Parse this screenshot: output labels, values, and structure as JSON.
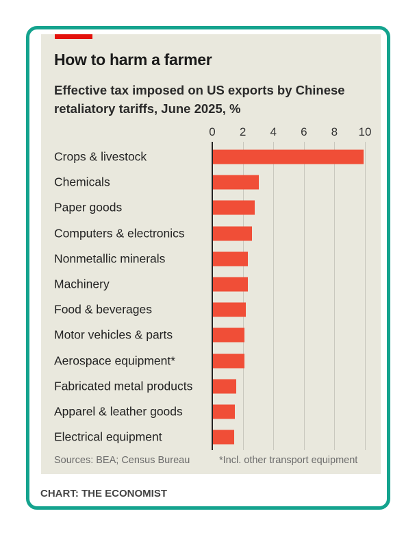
{
  "chart_data": {
    "type": "bar",
    "orientation": "horizontal",
    "title": "How to harm a farmer",
    "subtitle": "Effective tax imposed on US exports by Chinese retaliatory tariffs, June 2025, %",
    "categories": [
      "Crops & livestock",
      "Chemicals",
      "Paper goods",
      "Computers & electronics",
      "Nonmetallic minerals",
      "Machinery",
      "Food & beverages",
      "Motor vehicles & parts",
      "Aerospace equipment*",
      "Fabricated metal products",
      "Apparel & leather goods",
      "Electrical equipment"
    ],
    "values": [
      9.9,
      3.05,
      2.8,
      2.6,
      2.35,
      2.35,
      2.2,
      2.1,
      2.1,
      1.55,
      1.5,
      1.45
    ],
    "xlim": [
      0,
      10
    ],
    "xticks": [
      "0",
      "2",
      "4",
      "6",
      "8",
      "10"
    ],
    "axis_position": "top",
    "grid": true,
    "bar_color": "#f04e37",
    "source": "Sources: BEA; Census Bureau",
    "footnote": "*Incl. other transport equipment"
  },
  "credit": "CHART: THE ECONOMIST",
  "colors": {
    "frame": "#14a38e",
    "panel": "#e9e8dd",
    "tag": "#e3120b"
  }
}
